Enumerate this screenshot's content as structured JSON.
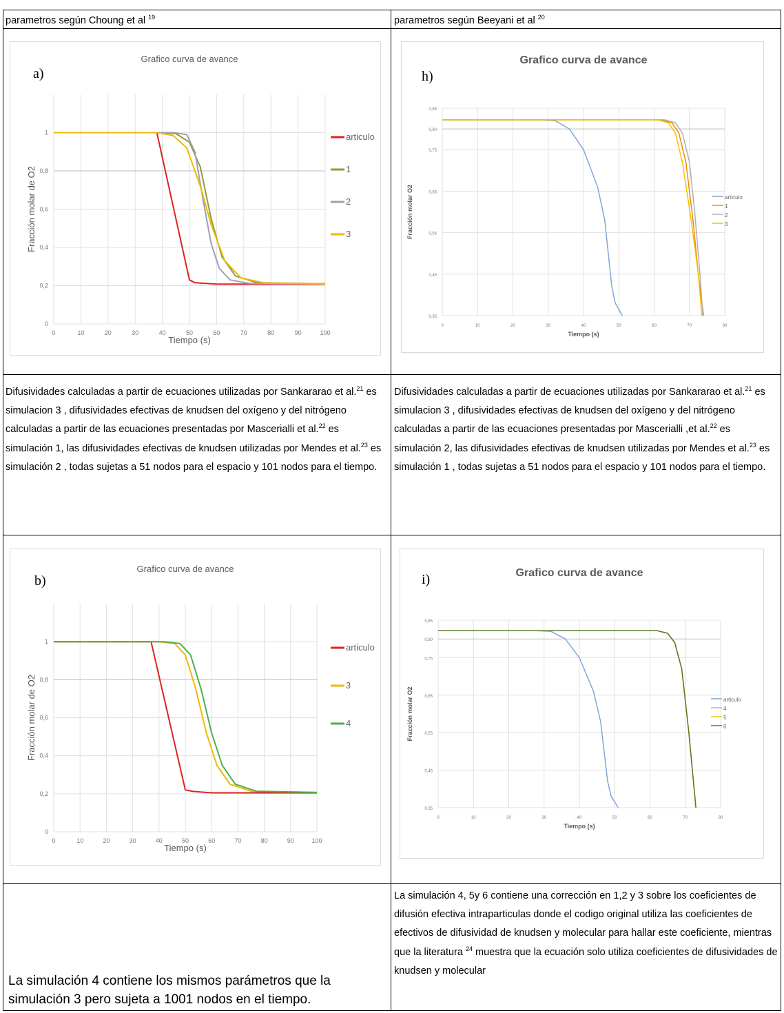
{
  "header": {
    "left_text": "parametros según Choung et al",
    "left_ref": "19",
    "right_text": "parametros según Beeyani et al",
    "right_ref": "20"
  },
  "description_left": {
    "p1": "Difusividades calculadas a partir de ecuaciones utilizadas por Sankararao et al.",
    "r1": "21",
    "p2": " es simulacion 3 , difusividades efectivas de knudsen del oxígeno y del nitrógeno calculadas a partir de las ecuaciones presentadas por Mascerialli et al.",
    "r2": "22",
    "p3": " es simulación 1, las difusividades efectivas de knudsen utilizadas por Mendes et al.",
    "r3": "23",
    "p4": " es simulación 2 , todas sujetas a 51 nodos para el espacio y 101 nodos para el tiempo."
  },
  "description_right": {
    "p1": "Difusividades calculadas a partir de ecuaciones utilizadas por Sankararao et al.",
    "r1": "21",
    "p2": " es simulacion 3 , difusividades efectivas de knudsen del oxígeno y del nitrógeno calculadas a partir de las ecuaciones presentadas por Mascerialli ,et al.",
    "r2": "22",
    "p3": " es simulación 2, las difusividades efectivas de knudsen utilizadas por Mendes et al.",
    "r3": "23",
    "p4": " es simulación 1 , todas sujetas a 51 nodos para el espacio y 101 nodos para el tiempo."
  },
  "note_left": "La simulación 4 contiene los mismos parámetros que la simulación 3 pero sujeta a 1001 nodos en el tiempo.",
  "note_right": {
    "p1": "La simulación 4, 5y 6 contiene una corrección en 1,2 y 3 sobre los coeficientes de difusión efectiva intraparticulas donde el codigo original utiliza las coeficientes de efectivos de difusividad de knudsen y molecular para hallar este coeficiente, mientras que la literatura ",
    "r1": "24",
    "p2": " muestra que la ecuación solo utiliza coeficientes de difusividades de knudsen y molecular"
  },
  "chart_data": [
    {
      "panel": "a)",
      "type": "line",
      "title": "Grafico curva de avance",
      "xlabel": "Tiempo (s)",
      "ylabel": "Fracción molar de O2",
      "xlim": [
        0,
        100
      ],
      "ylim": [
        0,
        1.2
      ],
      "xticks": [
        0,
        10,
        20,
        30,
        40,
        50,
        60,
        70,
        80,
        90,
        100
      ],
      "yticks": [
        0,
        0.2,
        0.4,
        0.6,
        0.8,
        1
      ],
      "ytick_labels": [
        "0",
        "0,2",
        "0,4",
        "0,6",
        "0,8",
        "1"
      ],
      "grid": true,
      "legend": "right",
      "series": [
        {
          "name": "articulo",
          "color": "#e02020",
          "points": [
            [
              0,
              1
            ],
            [
              38,
              1
            ],
            [
              50,
              0.23
            ],
            [
              52,
              0.215
            ],
            [
              60,
              0.208
            ],
            [
              100,
              0.208
            ]
          ]
        },
        {
          "name": "1",
          "color": "#8c9e3a",
          "points": [
            [
              0,
              1
            ],
            [
              40,
              1
            ],
            [
              45,
              0.995
            ],
            [
              50,
              0.95
            ],
            [
              54,
              0.82
            ],
            [
              58,
              0.55
            ],
            [
              62,
              0.35
            ],
            [
              67,
              0.25
            ],
            [
              75,
              0.215
            ],
            [
              100,
              0.21
            ]
          ]
        },
        {
          "name": "2",
          "color": "#9aa0b4",
          "points": [
            [
              0,
              1
            ],
            [
              44,
              1
            ],
            [
              49,
              0.99
            ],
            [
              52,
              0.9
            ],
            [
              55,
              0.65
            ],
            [
              58,
              0.42
            ],
            [
              61,
              0.29
            ],
            [
              65,
              0.23
            ],
            [
              72,
              0.212
            ],
            [
              100,
              0.21
            ]
          ]
        },
        {
          "name": "3",
          "color": "#f0b800",
          "points": [
            [
              0,
              1
            ],
            [
              38,
              1
            ],
            [
              44,
              0.985
            ],
            [
              49,
              0.92
            ],
            [
              54,
              0.72
            ],
            [
              58,
              0.52
            ],
            [
              63,
              0.33
            ],
            [
              69,
              0.24
            ],
            [
              78,
              0.213
            ],
            [
              100,
              0.21
            ]
          ]
        }
      ]
    },
    {
      "panel": "h)",
      "type": "line",
      "title": "Grafico curva de avance",
      "xlabel": "Tiempo (s)",
      "ylabel": "Fracción molar O2",
      "xlim": [
        0,
        80
      ],
      "ylim": [
        0.35,
        0.85
      ],
      "xticks": [
        0,
        10,
        20,
        30,
        40,
        50,
        60,
        70,
        80
      ],
      "yticks": [
        0.35,
        0.45,
        0.55,
        0.65,
        0.75,
        0.8,
        0.85
      ],
      "ytick_labels": [
        "0,35",
        "0,45",
        "0,55",
        "0,65",
        "0,75",
        "0,80",
        "0,85"
      ],
      "grid": true,
      "legend": "right",
      "series": [
        {
          "name": "articulo",
          "color": "#7fa6d8",
          "points": [
            [
              0,
              0.822
            ],
            [
              28,
              0.822
            ],
            [
              32,
              0.82
            ],
            [
              36,
              0.8
            ],
            [
              40,
              0.75
            ],
            [
              44,
              0.66
            ],
            [
              46,
              0.58
            ],
            [
              47,
              0.5
            ],
            [
              48,
              0.42
            ],
            [
              49,
              0.38
            ],
            [
              51,
              0.35
            ]
          ]
        },
        {
          "name": "1",
          "color": "#f08c00",
          "points": [
            [
              0,
              0.822
            ],
            [
              62,
              0.822
            ],
            [
              65,
              0.815
            ],
            [
              67,
              0.79
            ],
            [
              69,
              0.72
            ],
            [
              71,
              0.58
            ],
            [
              72.5,
              0.45
            ],
            [
              74,
              0.35
            ]
          ]
        },
        {
          "name": "2",
          "color": "#b0b0b0",
          "points": [
            [
              0,
              0.822
            ],
            [
              63,
              0.822
            ],
            [
              66,
              0.815
            ],
            [
              68,
              0.79
            ],
            [
              70,
              0.72
            ],
            [
              71.5,
              0.6
            ],
            [
              73,
              0.45
            ],
            [
              73.8,
              0.35
            ]
          ]
        },
        {
          "name": "3",
          "color": "#f5c000",
          "points": [
            [
              0,
              0.822
            ],
            [
              61,
              0.822
            ],
            [
              64,
              0.815
            ],
            [
              66,
              0.79
            ],
            [
              68,
              0.72
            ],
            [
              70.5,
              0.58
            ],
            [
              72.5,
              0.45
            ],
            [
              73.5,
              0.35
            ]
          ]
        }
      ]
    },
    {
      "panel": "b)",
      "type": "line",
      "title": "Grafico curva de avance",
      "xlabel": "Tiempo (s)",
      "ylabel": "Fracción molar de O2",
      "xlim": [
        0,
        100
      ],
      "ylim": [
        0,
        1.2
      ],
      "xticks": [
        0,
        10,
        20,
        30,
        40,
        50,
        60,
        70,
        80,
        90,
        100
      ],
      "yticks": [
        0,
        0.2,
        0.4,
        0.6,
        0.8,
        1
      ],
      "ytick_labels": [
        "0",
        "0,2",
        "0,4",
        "0,6",
        "0,8",
        "1"
      ],
      "grid": true,
      "legend": "right",
      "series": [
        {
          "name": "articulo",
          "color": "#e02020",
          "points": [
            [
              0,
              1
            ],
            [
              37,
              1
            ],
            [
              50,
              0.22
            ],
            [
              53,
              0.212
            ],
            [
              60,
              0.205
            ],
            [
              100,
              0.205
            ]
          ]
        },
        {
          "name": "3",
          "color": "#f0b800",
          "points": [
            [
              0,
              1
            ],
            [
              40,
              1
            ],
            [
              46,
              0.99
            ],
            [
              50,
              0.93
            ],
            [
              54,
              0.75
            ],
            [
              58,
              0.52
            ],
            [
              62,
              0.35
            ],
            [
              67,
              0.25
            ],
            [
              75,
              0.213
            ],
            [
              100,
              0.207
            ]
          ]
        },
        {
          "name": "4",
          "color": "#4caf50",
          "points": [
            [
              0,
              1
            ],
            [
              42,
              1
            ],
            [
              48,
              0.99
            ],
            [
              52,
              0.93
            ],
            [
              56,
              0.75
            ],
            [
              60,
              0.52
            ],
            [
              64,
              0.35
            ],
            [
              69,
              0.25
            ],
            [
              77,
              0.213
            ],
            [
              100,
              0.207
            ]
          ]
        }
      ]
    },
    {
      "panel": "i)",
      "type": "line",
      "title": "Grafico curva de avance",
      "xlabel": "Tiempo (s)",
      "ylabel": "Fracción molar O2",
      "xlim": [
        0,
        80
      ],
      "ylim": [
        0.35,
        0.85
      ],
      "xticks": [
        0,
        10,
        20,
        30,
        40,
        50,
        60,
        70,
        80
      ],
      "yticks": [
        0.35,
        0.45,
        0.55,
        0.65,
        0.75,
        0.8,
        0.85
      ],
      "ytick_labels": [
        "0,35",
        "0,45",
        "0,55",
        "0,65",
        "0,75",
        "0,80",
        "0,85"
      ],
      "grid": true,
      "legend": "right",
      "series": [
        {
          "name": "articulo",
          "color": "#7fa6d8",
          "points": [
            [
              0,
              0.822
            ],
            [
              28,
              0.822
            ],
            [
              32,
              0.82
            ],
            [
              36,
              0.8
            ],
            [
              40,
              0.75
            ],
            [
              44,
              0.66
            ],
            [
              46,
              0.58
            ],
            [
              47,
              0.5
            ],
            [
              48,
              0.42
            ],
            [
              49,
              0.38
            ],
            [
              51,
              0.35
            ]
          ]
        },
        {
          "name": "4",
          "color": "#b0b0b0",
          "points": [
            [
              0,
              0.822
            ],
            [
              62,
              0.822
            ],
            [
              65,
              0.815
            ],
            [
              67,
              0.79
            ],
            [
              69,
              0.72
            ],
            [
              71,
              0.55
            ],
            [
              72,
              0.45
            ],
            [
              73,
              0.35
            ]
          ]
        },
        {
          "name": "5",
          "color": "#f5c000",
          "points": [
            [
              0,
              0.822
            ],
            [
              62,
              0.822
            ],
            [
              65,
              0.815
            ],
            [
              67,
              0.79
            ],
            [
              69,
              0.72
            ],
            [
              71,
              0.55
            ],
            [
              72,
              0.45
            ],
            [
              73,
              0.35
            ]
          ]
        },
        {
          "name": "6",
          "color": "#5a7a2a",
          "points": [
            [
              0,
              0.822
            ],
            [
              62,
              0.822
            ],
            [
              65,
              0.815
            ],
            [
              67,
              0.79
            ],
            [
              69,
              0.72
            ],
            [
              71,
              0.55
            ],
            [
              72,
              0.45
            ],
            [
              73,
              0.35
            ]
          ]
        }
      ]
    }
  ]
}
